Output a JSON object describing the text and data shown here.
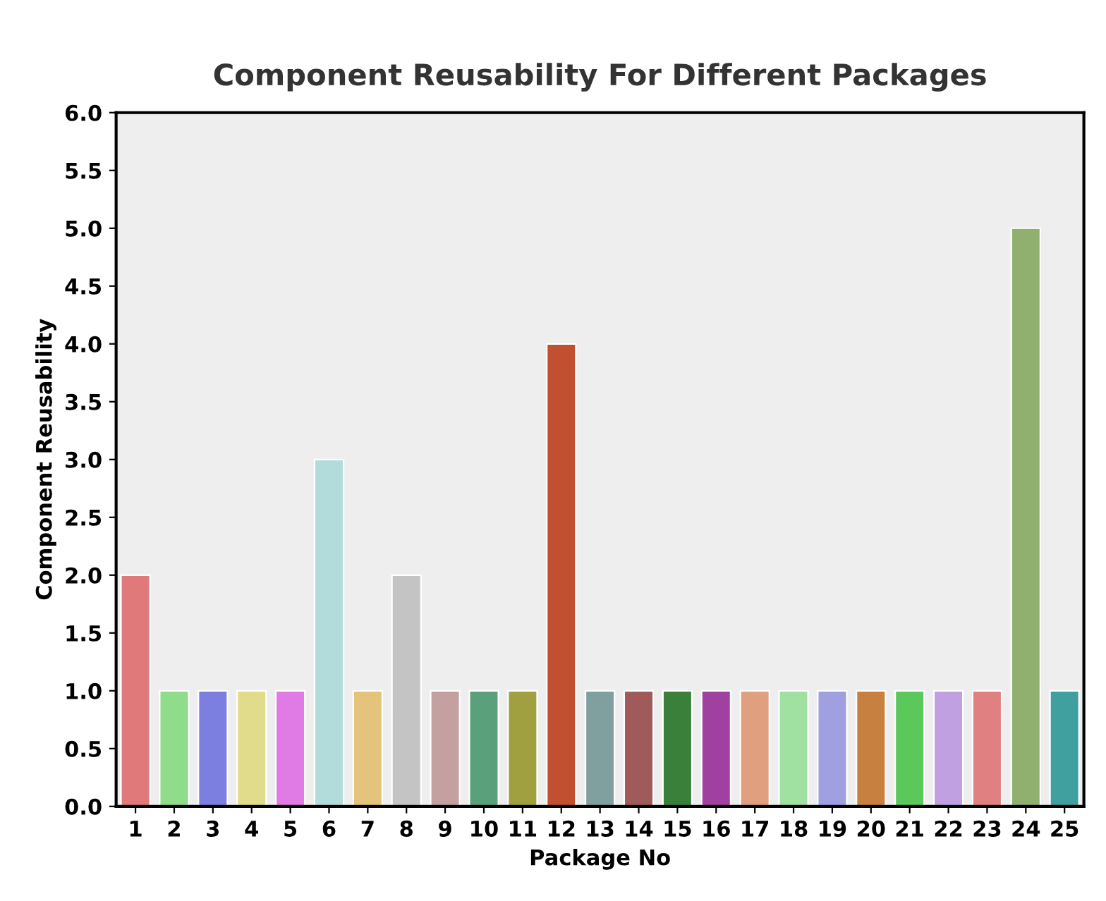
{
  "chart_data": {
    "type": "bar",
    "title": "Component Reusability For Different Packages",
    "xlabel": "Package No",
    "ylabel": "Component Reusability",
    "categories": [
      "1",
      "2",
      "3",
      "4",
      "5",
      "6",
      "7",
      "8",
      "9",
      "10",
      "11",
      "12",
      "13",
      "14",
      "15",
      "16",
      "17",
      "18",
      "19",
      "20",
      "21",
      "22",
      "23",
      "24",
      "25"
    ],
    "values": [
      2,
      1,
      1,
      1,
      1,
      3,
      1,
      2,
      1,
      1,
      1,
      4,
      1,
      1,
      1,
      1,
      1,
      1,
      1,
      1,
      1,
      1,
      1,
      5,
      1
    ],
    "colors": [
      "#e07a7a",
      "#8fdc8a",
      "#7c7ee0",
      "#e0dc8c",
      "#e07ae4",
      "#b2dcdc",
      "#e4c47c",
      "#c4c4c4",
      "#c4a0a0",
      "#5aa07a",
      "#a0a040",
      "#c05030",
      "#80a0a0",
      "#a05a5a",
      "#3a803a",
      "#a040a0",
      "#e0a080",
      "#a0e0a0",
      "#a0a0e0",
      "#c88040",
      "#5ac85a",
      "#c0a0e0",
      "#e08080",
      "#90b070",
      "#40a0a0"
    ],
    "ylim": [
      0,
      6
    ],
    "yticks": [
      {
        "value": 0,
        "label": "0.0"
      },
      {
        "value": 0.5,
        "label": "0.5"
      },
      {
        "value": 1,
        "label": "1.0"
      },
      {
        "value": 1.5,
        "label": "1.5"
      },
      {
        "value": 2,
        "label": "2.0"
      },
      {
        "value": 2.5,
        "label": "2.5"
      },
      {
        "value": 3,
        "label": "3.0"
      },
      {
        "value": 3.5,
        "label": "3.5"
      },
      {
        "value": 4,
        "label": "4.0"
      },
      {
        "value": 4.5,
        "label": "4.5"
      },
      {
        "value": 5,
        "label": "5.0"
      },
      {
        "value": 5.5,
        "label": "5.5"
      },
      {
        "value": 6,
        "label": "6.0"
      }
    ],
    "grid": false
  }
}
